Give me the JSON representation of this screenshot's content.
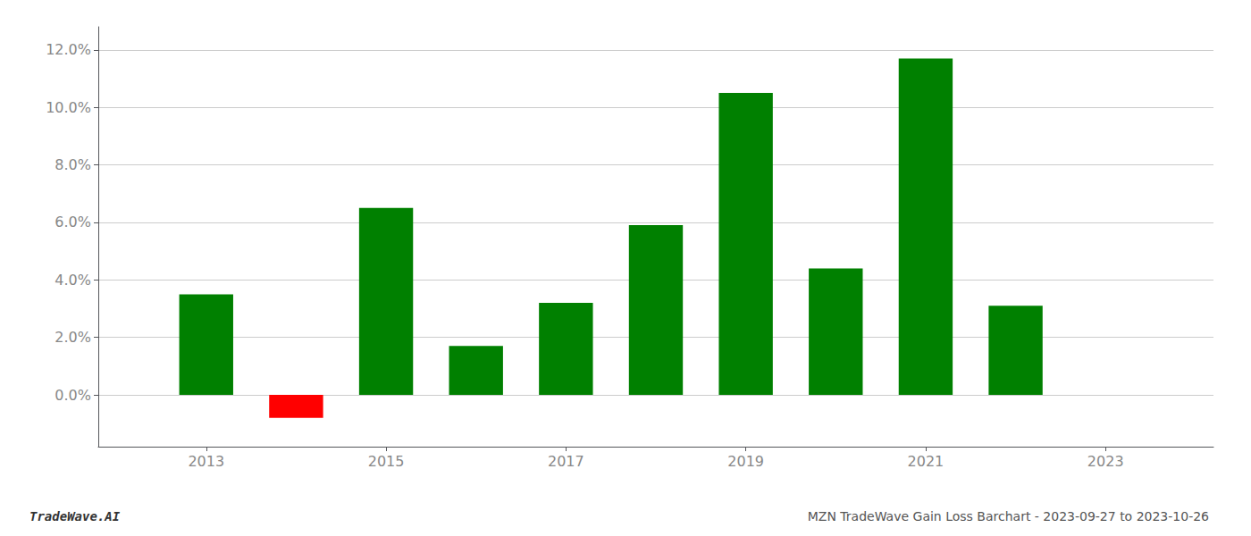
{
  "chart_data": {
    "type": "bar",
    "title": "MZN TradeWave Gain Loss Barchart - 2023-09-27 to 2023-10-26",
    "annotations": [
      "TradeWave.AI"
    ],
    "x": [
      2013,
      2014,
      2015,
      2016,
      2017,
      2018,
      2019,
      2020,
      2021,
      2022
    ],
    "values": [
      0.035,
      -0.008,
      0.065,
      0.017,
      0.032,
      0.059,
      0.105,
      0.044,
      0.117,
      0.031
    ],
    "colors": [
      "#008000",
      "#ff0000",
      "#008000",
      "#008000",
      "#008000",
      "#008000",
      "#008000",
      "#008000",
      "#008000",
      "#008000"
    ],
    "xlim": [
      2011.8,
      2024.2
    ],
    "xticks": [
      2013,
      2015,
      2017,
      2019,
      2021,
      2023
    ],
    "ylim": [
      -0.018,
      0.128
    ],
    "yticks": [
      {
        "value": 0.0,
        "label": "0.0%"
      },
      {
        "value": 0.02,
        "label": "2.0%"
      },
      {
        "value": 0.04,
        "label": "4.0%"
      },
      {
        "value": 0.06,
        "label": "6.0%"
      },
      {
        "value": 0.08,
        "label": "8.0%"
      },
      {
        "value": 0.1,
        "label": "10.0%"
      },
      {
        "value": 0.12,
        "label": "12.0%"
      }
    ],
    "grid": true
  }
}
